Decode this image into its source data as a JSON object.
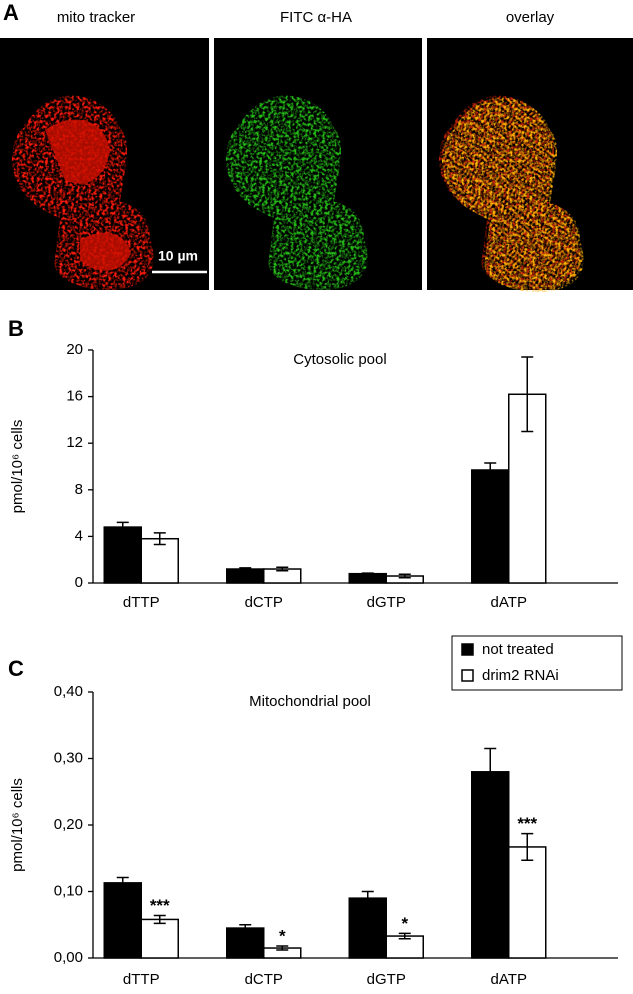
{
  "panel_labels": [
    "A",
    "B",
    "C"
  ],
  "images": {
    "labels": [
      "mito tracker",
      "FITC α-HA",
      "overlay"
    ],
    "scale_bar": "10 µm"
  },
  "chart_data": [
    {
      "type": "bar",
      "title": "Cytosolic pool",
      "ylabel": "pmol/10⁶ cells",
      "categories": [
        "dTTP",
        "dCTP",
        "dGTP",
        "dATP"
      ],
      "series": [
        {
          "name": "not treated",
          "color": "#000000",
          "values": [
            4.8,
            1.2,
            0.8,
            9.7
          ],
          "errors": [
            0.4,
            0.1,
            0.05,
            0.6
          ]
        },
        {
          "name": "drim2 RNAi",
          "color": "#ffffff",
          "values": [
            3.8,
            1.2,
            0.6,
            16.2
          ],
          "errors": [
            0.5,
            0.15,
            0.15,
            3.2
          ]
        }
      ],
      "ylim": [
        0,
        20
      ],
      "yticks": [
        0,
        4,
        8,
        12,
        16,
        20
      ],
      "legend": "bottom-right"
    },
    {
      "type": "bar",
      "title": "Mitochondrial pool",
      "ylabel": "pmol/10⁶ cells",
      "categories": [
        "dTTP",
        "dCTP",
        "dGTP",
        "dATP"
      ],
      "series": [
        {
          "color": "#000000",
          "values": [
            0.113,
            0.045,
            0.09,
            0.28
          ],
          "errors": [
            0.008,
            0.005,
            0.01,
            0.035
          ]
        },
        {
          "color": "#ffffff",
          "values": [
            0.058,
            0.015,
            0.033,
            0.167
          ],
          "errors": [
            0.006,
            0.003,
            0.004,
            0.02
          ],
          "significance": [
            "***",
            "*",
            "*",
            "***"
          ]
        }
      ],
      "ylim": [
        0,
        0.4
      ],
      "yticks": [
        {
          "value": 0,
          "label": "0,00"
        },
        {
          "value": 0.1,
          "label": "0,10"
        },
        {
          "value": 0.2,
          "label": "0,20"
        },
        {
          "value": 0.3,
          "label": "0,30"
        },
        {
          "value": 0.4,
          "label": "0,40"
        }
      ]
    }
  ]
}
